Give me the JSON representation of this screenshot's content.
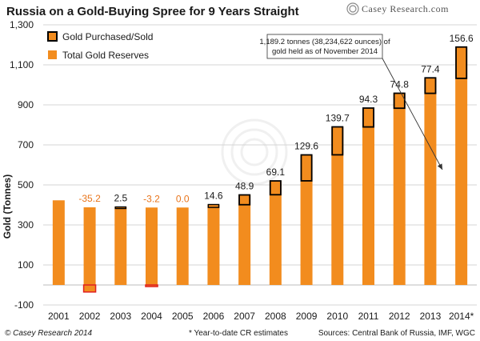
{
  "chart_data": {
    "type": "bar",
    "title": "Russia on a Gold-Buying Spree for 9 Years Straight",
    "brand": "Casey Research.com",
    "ylabel": "Gold (Tonnes)",
    "ylim": [
      -100,
      1300
    ],
    "yticks": [
      -100,
      100,
      300,
      500,
      700,
      900,
      1100,
      1300
    ],
    "ytick_labels": [
      "-100",
      "100",
      "300",
      "500",
      "700",
      "900",
      "1,100",
      "1,300"
    ],
    "grid": true,
    "legend_position": "top-left",
    "categories": [
      "2001",
      "2002",
      "2003",
      "2004",
      "2005",
      "2006",
      "2007",
      "2008",
      "2009",
      "2010",
      "2011",
      "2012",
      "2013",
      "2014*"
    ],
    "series": [
      {
        "name": "Total Gold Reserves",
        "color": "#f28c1e",
        "values": [
          423,
          388,
          390,
          387,
          387,
          402,
          450,
          520,
          650,
          790,
          884,
          958,
          1035,
          1189
        ]
      },
      {
        "name": "Gold Purchased/Sold",
        "color": "#f28c1e",
        "border_color": "#000000",
        "negative_border_color": "#e02020",
        "values": [
          null,
          -35.2,
          2.5,
          -3.2,
          0.0,
          14.6,
          48.9,
          69.1,
          129.6,
          139.7,
          94.3,
          74.8,
          77.4,
          156.6
        ],
        "labels": [
          "",
          "-35.2",
          "2.5",
          "-3.2",
          "0.0",
          "14.6",
          "48.9",
          "69.1",
          "129.6",
          "139.7",
          "94.3",
          "74.8",
          "77.4",
          "156.6"
        ]
      }
    ],
    "label_colors": {
      "positive": "#1a1a1a",
      "nonpositive": "#e8741a"
    },
    "annotation": {
      "lines": [
        "1,189.2 tonnes (38,234,622 ounces) of",
        "gold held as of November 2014"
      ]
    }
  },
  "footer": {
    "copyright": "© Casey Research 2014",
    "note": "* Year-to-date CR estimates",
    "sources": "Sources: Central Bank of Russia, IMF, WGC"
  }
}
